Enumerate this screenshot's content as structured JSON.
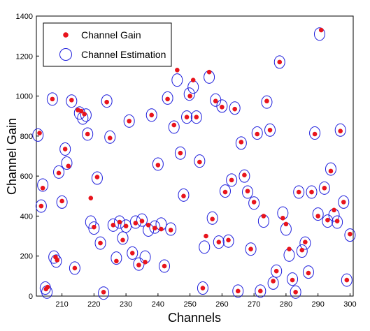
{
  "chart_data": {
    "type": "scatter",
    "xlabel": "Channels",
    "ylabel": "Channel Gain",
    "xlim": [
      202,
      301
    ],
    "ylim": [
      0,
      1400
    ],
    "xticks": [
      210,
      220,
      230,
      240,
      250,
      260,
      270,
      280,
      290,
      300
    ],
    "yticks": [
      0,
      200,
      400,
      600,
      800,
      1000,
      1200,
      1400
    ],
    "grid": false,
    "legend_position": "top-left",
    "colors": {
      "gain": "#e8141c",
      "estimation": "#1f1fdc",
      "axes": "#000000"
    },
    "series": [
      {
        "name": "Channel Gain",
        "marker": "filled-dot",
        "points": [
          [
            203,
            815
          ],
          [
            203.5,
            450
          ],
          [
            204,
            540
          ],
          [
            205,
            35
          ],
          [
            205.5,
            45
          ],
          [
            207,
            985
          ],
          [
            208,
            195
          ],
          [
            208.5,
            180
          ],
          [
            209,
            615
          ],
          [
            210,
            475
          ],
          [
            211,
            735
          ],
          [
            212,
            650
          ],
          [
            213,
            980
          ],
          [
            214,
            140
          ],
          [
            215,
            930
          ],
          [
            216,
            925
          ],
          [
            217,
            910
          ],
          [
            218,
            810
          ],
          [
            219,
            490
          ],
          [
            220,
            345
          ],
          [
            221,
            595
          ],
          [
            222,
            265
          ],
          [
            223,
            20
          ],
          [
            224,
            970
          ],
          [
            225,
            790
          ],
          [
            226,
            355
          ],
          [
            227,
            175
          ],
          [
            228,
            370
          ],
          [
            229,
            280
          ],
          [
            230,
            350
          ],
          [
            231,
            875
          ],
          [
            232,
            215
          ],
          [
            233,
            365
          ],
          [
            234,
            155
          ],
          [
            235,
            375
          ],
          [
            236,
            170
          ],
          [
            237,
            355
          ],
          [
            238,
            905
          ],
          [
            239,
            340
          ],
          [
            240,
            655
          ],
          [
            241,
            335
          ],
          [
            242,
            150
          ],
          [
            243,
            985
          ],
          [
            244,
            330
          ],
          [
            245,
            855
          ],
          [
            246,
            1130
          ],
          [
            247,
            715
          ],
          [
            248,
            500
          ],
          [
            249,
            895
          ],
          [
            250,
            1000
          ],
          [
            251,
            1080
          ],
          [
            252,
            895
          ],
          [
            253,
            670
          ],
          [
            254,
            40
          ],
          [
            255,
            300
          ],
          [
            256,
            1120
          ],
          [
            257,
            385
          ],
          [
            258,
            975
          ],
          [
            259,
            270
          ],
          [
            260,
            945
          ],
          [
            261,
            520
          ],
          [
            262,
            280
          ],
          [
            263,
            580
          ],
          [
            264,
            935
          ],
          [
            265,
            25
          ],
          [
            266,
            770
          ],
          [
            267,
            605
          ],
          [
            268,
            525
          ],
          [
            269,
            235
          ],
          [
            270,
            470
          ],
          [
            271,
            810
          ],
          [
            272,
            25
          ],
          [
            273,
            400
          ],
          [
            274,
            975
          ],
          [
            275,
            830
          ],
          [
            276,
            75
          ],
          [
            277,
            125
          ],
          [
            278,
            1170
          ],
          [
            279,
            390
          ],
          [
            280,
            360
          ],
          [
            281,
            235
          ],
          [
            282,
            80
          ],
          [
            283,
            20
          ],
          [
            284,
            520
          ],
          [
            285,
            230
          ],
          [
            286,
            270
          ],
          [
            287,
            115
          ],
          [
            288,
            520
          ],
          [
            289,
            810
          ],
          [
            290,
            400
          ],
          [
            291,
            1330
          ],
          [
            292,
            540
          ],
          [
            293,
            380
          ],
          [
            294,
            625
          ],
          [
            295,
            430
          ],
          [
            296,
            375
          ],
          [
            297,
            825
          ],
          [
            298,
            470
          ],
          [
            299,
            80
          ],
          [
            300,
            310
          ]
        ]
      },
      {
        "name": "Channel Estimation",
        "marker": "open-circle",
        "points": [
          [
            202.5,
            805
          ],
          [
            203.5,
            450
          ],
          [
            204,
            555
          ],
          [
            204.8,
            40
          ],
          [
            205.3,
            20
          ],
          [
            207,
            985
          ],
          [
            207.5,
            195
          ],
          [
            208.2,
            175
          ],
          [
            209,
            620
          ],
          [
            210,
            470
          ],
          [
            211,
            735
          ],
          [
            211.5,
            665
          ],
          [
            213,
            975
          ],
          [
            214,
            140
          ],
          [
            215.5,
            915
          ],
          [
            216.5,
            890
          ],
          [
            217.5,
            905
          ],
          [
            218,
            810
          ],
          [
            219,
            370
          ],
          [
            220,
            340
          ],
          [
            221,
            590
          ],
          [
            222,
            265
          ],
          [
            223,
            15
          ],
          [
            224,
            975
          ],
          [
            225,
            795
          ],
          [
            226,
            355
          ],
          [
            227,
            190
          ],
          [
            228,
            370
          ],
          [
            229,
            290
          ],
          [
            230,
            350
          ],
          [
            231,
            875
          ],
          [
            232,
            215
          ],
          [
            233,
            370
          ],
          [
            234,
            160
          ],
          [
            235,
            380
          ],
          [
            236,
            195
          ],
          [
            237,
            330
          ],
          [
            238,
            905
          ],
          [
            239,
            345
          ],
          [
            240,
            660
          ],
          [
            241,
            360
          ],
          [
            242,
            150
          ],
          [
            243,
            990
          ],
          [
            244,
            335
          ],
          [
            245,
            845
          ],
          [
            246,
            1080
          ],
          [
            247,
            715
          ],
          [
            248,
            505
          ],
          [
            249,
            895
          ],
          [
            249.8,
            1010
          ],
          [
            251,
            1045
          ],
          [
            252,
            895
          ],
          [
            253,
            675
          ],
          [
            254,
            40
          ],
          [
            254.5,
            245
          ],
          [
            256,
            1095
          ],
          [
            257,
            390
          ],
          [
            258,
            980
          ],
          [
            259,
            270
          ],
          [
            260,
            950
          ],
          [
            261,
            525
          ],
          [
            262,
            275
          ],
          [
            263,
            580
          ],
          [
            264,
            940
          ],
          [
            265,
            25
          ],
          [
            266,
            765
          ],
          [
            267,
            600
          ],
          [
            268,
            520
          ],
          [
            269,
            235
          ],
          [
            270,
            465
          ],
          [
            271,
            815
          ],
          [
            272,
            25
          ],
          [
            273,
            375
          ],
          [
            274,
            970
          ],
          [
            275,
            830
          ],
          [
            276,
            65
          ],
          [
            277,
            125
          ],
          [
            278,
            1170
          ],
          [
            279,
            415
          ],
          [
            280,
            335
          ],
          [
            281,
            205
          ],
          [
            282,
            85
          ],
          [
            283,
            20
          ],
          [
            284,
            520
          ],
          [
            285,
            225
          ],
          [
            286,
            265
          ],
          [
            287,
            120
          ],
          [
            288,
            520
          ],
          [
            289,
            815
          ],
          [
            290,
            410
          ],
          [
            290.5,
            1310
          ],
          [
            292,
            540
          ],
          [
            293,
            375
          ],
          [
            294,
            635
          ],
          [
            295,
            405
          ],
          [
            296,
            370
          ],
          [
            297,
            830
          ],
          [
            298,
            470
          ],
          [
            299,
            80
          ],
          [
            300,
            305
          ]
        ]
      }
    ]
  }
}
